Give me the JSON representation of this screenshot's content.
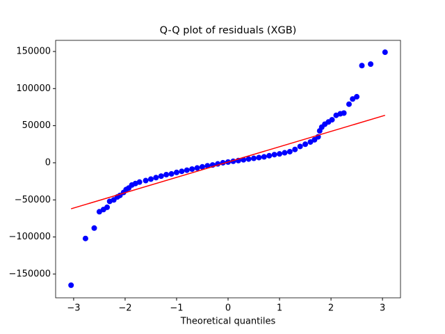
{
  "chart_data": {
    "type": "scatter",
    "title": "Q-Q plot of residuals (XGB)",
    "x_label": "Theoretical quantiles",
    "xlim": [
      -3.35,
      3.35
    ],
    "ylim": [
      -182000,
      165000
    ],
    "xticks": [
      {
        "value": -3,
        "label": "−3"
      },
      {
        "value": -2,
        "label": "−2"
      },
      {
        "value": -1,
        "label": "−1"
      },
      0,
      1,
      2,
      3
    ],
    "yticks": [
      {
        "value": -150000,
        "label": "−150000"
      },
      {
        "value": -100000,
        "label": "−100000"
      },
      {
        "value": -50000,
        "label": "−50000"
      },
      0,
      50000,
      100000,
      150000
    ],
    "series": [
      {
        "type": "scatter",
        "color": "#0000ff",
        "x": [
          -3.05,
          -2.77,
          -2.6,
          -2.5,
          -2.42,
          -2.35,
          -2.3,
          -2.22,
          -2.15,
          -2.1,
          -2.03,
          -1.98,
          -1.93,
          -1.87,
          -1.8,
          -1.72,
          -1.6,
          -1.5,
          -1.4,
          -1.3,
          -1.2,
          -1.1,
          -1.0,
          -0.9,
          -0.8,
          -0.7,
          -0.6,
          -0.5,
          -0.4,
          -0.3,
          -0.2,
          -0.1,
          0.0,
          0.1,
          0.2,
          0.3,
          0.4,
          0.5,
          0.6,
          0.7,
          0.8,
          0.9,
          1.0,
          1.1,
          1.2,
          1.3,
          1.4,
          1.5,
          1.6,
          1.68,
          1.75,
          1.78,
          1.82,
          1.88,
          1.95,
          2.02,
          2.1,
          2.18,
          2.25,
          2.35,
          2.42,
          2.5,
          2.6,
          2.77,
          3.05
        ],
        "values": [
          -165000,
          -102000,
          -88000,
          -66000,
          -63000,
          -60000,
          -52000,
          -50000,
          -46000,
          -44000,
          -40000,
          -36000,
          -34000,
          -30000,
          -28000,
          -26000,
          -24000,
          -22000,
          -20000,
          -18000,
          -16000,
          -15000,
          -13000,
          -11500,
          -10000,
          -8500,
          -7000,
          -5500,
          -4000,
          -3000,
          -1500,
          0,
          1000,
          2000,
          3000,
          4000,
          5000,
          6000,
          7000,
          8000,
          9500,
          11000,
          12000,
          13500,
          15000,
          18000,
          22000,
          25000,
          28000,
          31000,
          35000,
          43000,
          48000,
          52000,
          55000,
          58000,
          64000,
          66000,
          67000,
          79000,
          86000,
          89000,
          131000,
          133000,
          149000
        ]
      },
      {
        "type": "line",
        "color": "#ff0000",
        "x": [
          -3.05,
          3.05
        ],
        "values": [
          -62000,
          64000
        ]
      }
    ]
  }
}
